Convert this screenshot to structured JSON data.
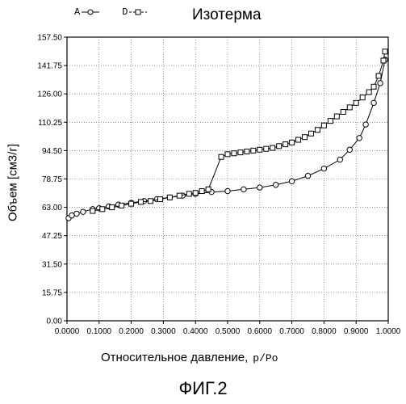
{
  "legend": [
    {
      "label": "A",
      "marker": "circle"
    },
    {
      "label": "D",
      "marker": "square"
    }
  ],
  "figure_caption": "ФИГ.2",
  "chart_data": {
    "type": "line",
    "title": "Изотерма",
    "xlabel": "Относительное давление,",
    "xlabel_unit": "p/Po",
    "ylabel": "Объем [см3/г]",
    "xlim": [
      0,
      1
    ],
    "ylim": [
      0,
      157.5
    ],
    "x_ticks": [
      "0.0000",
      "0.1000",
      "0.2000",
      "0.3000",
      "0.4000",
      "0.5000",
      "0.6000",
      "0.7000",
      "0.8000",
      "0.9000",
      "1.0000"
    ],
    "y_ticks": [
      "0.00",
      "15.75",
      "31.50",
      "47.25",
      "63.00",
      "78.75",
      "94.50",
      "110.25",
      "126.00",
      "141.75",
      "157.50"
    ],
    "grid": true,
    "series": [
      {
        "name": "A",
        "marker": "circle",
        "points": [
          [
            0.005,
            57
          ],
          [
            0.015,
            58.5
          ],
          [
            0.03,
            59.5
          ],
          [
            0.05,
            60.5
          ],
          [
            0.08,
            62
          ],
          [
            0.1,
            62.5
          ],
          [
            0.13,
            63.5
          ],
          [
            0.16,
            64.5
          ],
          [
            0.2,
            65.5
          ],
          [
            0.24,
            66.5
          ],
          [
            0.28,
            67.5
          ],
          [
            0.32,
            68.5
          ],
          [
            0.36,
            69.5
          ],
          [
            0.4,
            70.5
          ],
          [
            0.45,
            71.5
          ],
          [
            0.5,
            72
          ],
          [
            0.55,
            73
          ],
          [
            0.6,
            74
          ],
          [
            0.65,
            75.5
          ],
          [
            0.7,
            77.5
          ],
          [
            0.75,
            80.5
          ],
          [
            0.8,
            84.5
          ],
          [
            0.85,
            89.5
          ],
          [
            0.88,
            95
          ],
          [
            0.91,
            101.5
          ],
          [
            0.93,
            109
          ],
          [
            0.955,
            121
          ],
          [
            0.975,
            132
          ],
          [
            0.99,
            145
          ]
        ]
      },
      {
        "name": "D",
        "marker": "square",
        "points": [
          [
            0.99,
            149.5
          ],
          [
            0.985,
            144.5
          ],
          [
            0.97,
            136
          ],
          [
            0.955,
            130
          ],
          [
            0.94,
            127
          ],
          [
            0.92,
            124
          ],
          [
            0.9,
            121
          ],
          [
            0.88,
            118.5
          ],
          [
            0.86,
            116
          ],
          [
            0.84,
            113.5
          ],
          [
            0.82,
            111
          ],
          [
            0.8,
            108.5
          ],
          [
            0.78,
            106
          ],
          [
            0.76,
            104
          ],
          [
            0.74,
            102
          ],
          [
            0.72,
            100.5
          ],
          [
            0.7,
            99
          ],
          [
            0.68,
            98
          ],
          [
            0.66,
            97
          ],
          [
            0.64,
            96
          ],
          [
            0.62,
            95.5
          ],
          [
            0.6,
            95
          ],
          [
            0.58,
            94.5
          ],
          [
            0.56,
            94
          ],
          [
            0.54,
            93.5
          ],
          [
            0.52,
            93
          ],
          [
            0.5,
            92.5
          ],
          [
            0.48,
            91
          ],
          [
            0.44,
            73
          ],
          [
            0.42,
            72
          ],
          [
            0.4,
            71
          ],
          [
            0.38,
            70.5
          ],
          [
            0.35,
            69.5
          ],
          [
            0.32,
            68.5
          ],
          [
            0.29,
            67.5
          ],
          [
            0.26,
            66.5
          ],
          [
            0.23,
            66
          ],
          [
            0.2,
            65
          ],
          [
            0.17,
            64
          ],
          [
            0.14,
            63
          ],
          [
            0.11,
            62
          ],
          [
            0.08,
            61
          ]
        ]
      }
    ]
  }
}
